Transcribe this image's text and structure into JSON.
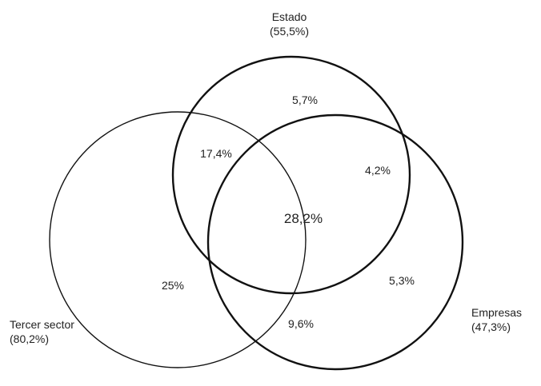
{
  "sets": {
    "estado": {
      "name": "Estado",
      "pct": "(55,5%)"
    },
    "tercer": {
      "name": "Tercer sector",
      "pct": "(80,2%)"
    },
    "empresas": {
      "name": "Empresas",
      "pct": "(47,3%)"
    }
  },
  "regions": {
    "estado_only": "5,7%",
    "estado_tercer": "17,4%",
    "estado_empresas": "4,2%",
    "all_three": "28,2%",
    "tercer_only": "25%",
    "empresas_only": "5,3%",
    "tercer_empresas": "9,6%"
  },
  "colors": {
    "stroke": "#111111",
    "text": "#222222"
  }
}
